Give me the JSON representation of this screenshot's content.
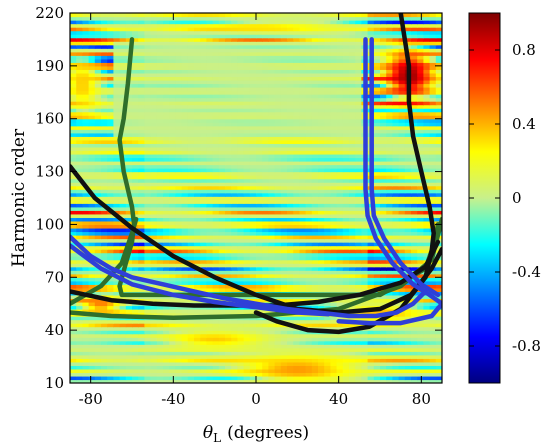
{
  "chart_data": {
    "type": "heatmap",
    "title": "",
    "xlabel": "θ_L (degrees)",
    "xlabel_parts": {
      "symbol": "θ",
      "subscript": "L",
      "unit": "(degrees)"
    },
    "ylabel": "Harmonic order",
    "xlim": [
      -90,
      90
    ],
    "ylim": [
      10,
      220
    ],
    "x_ticks": [
      -80,
      -40,
      0,
      40,
      80
    ],
    "y_ticks": [
      10,
      40,
      70,
      100,
      130,
      160,
      190,
      220
    ],
    "colorbar": {
      "range": [
        -1,
        1
      ],
      "ticks": [
        -0.8,
        -0.4,
        0,
        0.4,
        0.8
      ],
      "tick_labels": [
        "-0.8",
        "-0.4",
        "0",
        "0.4",
        "0.8"
      ],
      "colormap": "jet"
    },
    "blobs": [
      {
        "x": 74,
        "y": 185,
        "sx": 12,
        "sy": 14,
        "v": 0.95
      },
      {
        "x": -84,
        "y": 180,
        "sx": 8,
        "sy": 16,
        "v": 0.35
      },
      {
        "x": 20,
        "y": 18,
        "sx": 28,
        "sy": 8,
        "v": 0.45
      },
      {
        "x": -20,
        "y": 35,
        "sx": 25,
        "sy": 5,
        "v": 0.35
      },
      {
        "x": 60,
        "y": 50,
        "sx": 20,
        "sy": 5,
        "v": 0.4
      },
      {
        "x": -75,
        "y": 55,
        "sx": 12,
        "sy": 6,
        "v": 0.5
      },
      {
        "x": 0,
        "y": 212,
        "sx": 40,
        "sy": 4,
        "v": 0.3
      }
    ],
    "series": [
      {
        "color": "#2f6e2a",
        "points": [
          [
            -60,
            205
          ],
          [
            -62,
            180
          ],
          [
            -64,
            160
          ],
          [
            -66,
            148
          ],
          [
            -64,
            130
          ],
          [
            -60,
            110
          ],
          [
            -59,
            100
          ],
          [
            -60,
            90
          ],
          [
            -63,
            78
          ],
          [
            -66,
            65
          ],
          [
            -65,
            60
          ],
          [
            -55,
            60
          ],
          [
            -20,
            60
          ],
          [
            20,
            60
          ],
          [
            60,
            60
          ],
          [
            82,
            75
          ],
          [
            87,
            92
          ],
          [
            88,
            100
          ]
        ]
      },
      {
        "color": "#2f6e2a",
        "points": [
          [
            -90,
            55
          ],
          [
            -75,
            65
          ],
          [
            -65,
            78
          ],
          [
            -60,
            95
          ],
          [
            -58,
            103
          ]
        ]
      },
      {
        "color": "#2f6e2a",
        "points": [
          [
            -90,
            50
          ],
          [
            -70,
            48
          ],
          [
            -40,
            47
          ],
          [
            0,
            48
          ],
          [
            40,
            52
          ],
          [
            70,
            65
          ],
          [
            85,
            80
          ],
          [
            90,
            103
          ]
        ]
      },
      {
        "color": "#111111",
        "points": [
          [
            -90,
            133
          ],
          [
            -78,
            115
          ],
          [
            -60,
            98
          ],
          [
            -40,
            82
          ],
          [
            -20,
            70
          ],
          [
            0,
            60
          ],
          [
            20,
            52
          ],
          [
            40,
            50
          ],
          [
            60,
            52
          ],
          [
            75,
            60
          ],
          [
            85,
            75
          ],
          [
            90,
            86
          ]
        ]
      },
      {
        "color": "#111111",
        "points": [
          [
            -90,
            62
          ],
          [
            -70,
            57
          ],
          [
            -50,
            55
          ],
          [
            -30,
            54
          ],
          [
            -10,
            54
          ],
          [
            10,
            54
          ],
          [
            30,
            56
          ],
          [
            50,
            60
          ],
          [
            70,
            67
          ],
          [
            82,
            76
          ],
          [
            88,
            90
          ]
        ]
      },
      {
        "color": "#111111",
        "points": [
          [
            70,
            220
          ],
          [
            72,
            205
          ],
          [
            74,
            190
          ],
          [
            74,
            170
          ],
          [
            76,
            150
          ],
          [
            80,
            130
          ],
          [
            84,
            110
          ],
          [
            86,
            95
          ],
          [
            85,
            85
          ],
          [
            82,
            70
          ],
          [
            70,
            52
          ],
          [
            55,
            42
          ],
          [
            40,
            39
          ],
          [
            25,
            40
          ],
          [
            10,
            45
          ],
          [
            0,
            50
          ]
        ]
      },
      {
        "color": "#2f3fd8",
        "points": [
          [
            -90,
            93
          ],
          [
            -80,
            82
          ],
          [
            -70,
            75
          ],
          [
            -60,
            70
          ],
          [
            -45,
            66
          ],
          [
            -30,
            62
          ],
          [
            -15,
            58
          ],
          [
            0,
            55
          ],
          [
            15,
            52
          ],
          [
            30,
            50
          ],
          [
            45,
            48
          ],
          [
            58,
            48
          ],
          [
            68,
            50
          ],
          [
            76,
            55
          ],
          [
            82,
            62
          ]
        ]
      },
      {
        "color": "#2f3fd8",
        "points": [
          [
            -90,
            88
          ],
          [
            -75,
            75
          ],
          [
            -60,
            66
          ],
          [
            -40,
            60
          ],
          [
            -20,
            56
          ],
          [
            0,
            53
          ],
          [
            20,
            50
          ],
          [
            35,
            49
          ]
        ]
      },
      {
        "color": "#2f3fd8",
        "points": [
          [
            53,
            205
          ],
          [
            53,
            180
          ],
          [
            53,
            150
          ],
          [
            53,
            120
          ],
          [
            54,
            105
          ],
          [
            58,
            92
          ],
          [
            66,
            78
          ],
          [
            76,
            66
          ],
          [
            84,
            60
          ],
          [
            90,
            55
          ],
          [
            85,
            48
          ],
          [
            70,
            44
          ],
          [
            55,
            44
          ],
          [
            40,
            45
          ]
        ]
      },
      {
        "color": "#2f3fd8",
        "points": [
          [
            56,
            205
          ],
          [
            56,
            180
          ],
          [
            56,
            150
          ],
          [
            56,
            120
          ],
          [
            57,
            105
          ],
          [
            62,
            92
          ],
          [
            70,
            78
          ],
          [
            80,
            66
          ],
          [
            88,
            60
          ]
        ]
      }
    ]
  }
}
